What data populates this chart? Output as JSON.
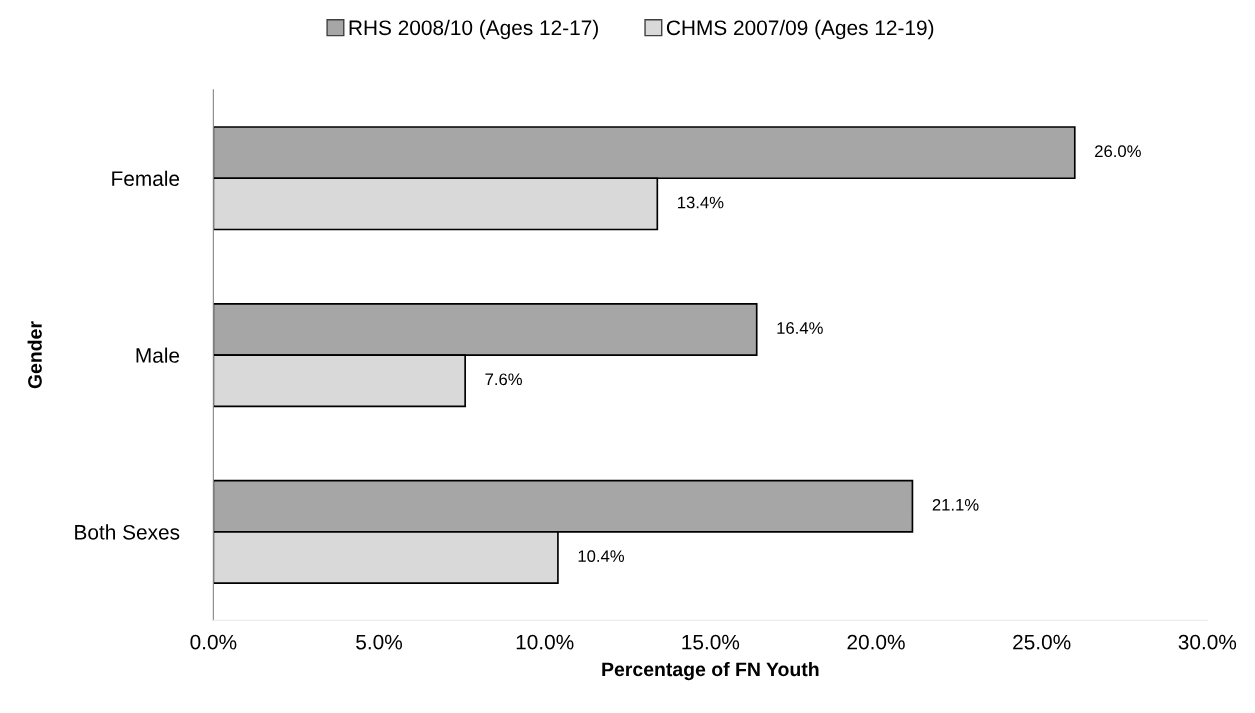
{
  "chart_data": {
    "type": "bar",
    "orientation": "horizontal",
    "categories": [
      "Female",
      "Male",
      "Both Sexes"
    ],
    "series": [
      {
        "name": "RHS 2008/10 (Ages 12-17)",
        "color": "#a6a6a6",
        "values": [
          26.0,
          16.4,
          21.1
        ],
        "value_labels": [
          "26.0%",
          "16.4%",
          "21.1%"
        ]
      },
      {
        "name": "CHMS 2007/09 (Ages 12-19)",
        "color": "#d9d9d9",
        "values": [
          13.4,
          7.6,
          10.4
        ],
        "value_labels": [
          "13.4%",
          "7.6%",
          "10.4%"
        ]
      }
    ],
    "xlabel": "Percentage of FN Youth",
    "ylabel": "Gender",
    "xlim": [
      0,
      30
    ],
    "xticks": [
      {
        "value": 0,
        "label": "0.0%"
      },
      {
        "value": 5,
        "label": "5.0%"
      },
      {
        "value": 10,
        "label": "10.0%"
      },
      {
        "value": 15,
        "label": "15.0%"
      },
      {
        "value": 20,
        "label": "20.0%"
      },
      {
        "value": 25,
        "label": "25.0%"
      },
      {
        "value": 30,
        "label": "30.0%"
      }
    ],
    "grid": false,
    "legend": "top"
  }
}
